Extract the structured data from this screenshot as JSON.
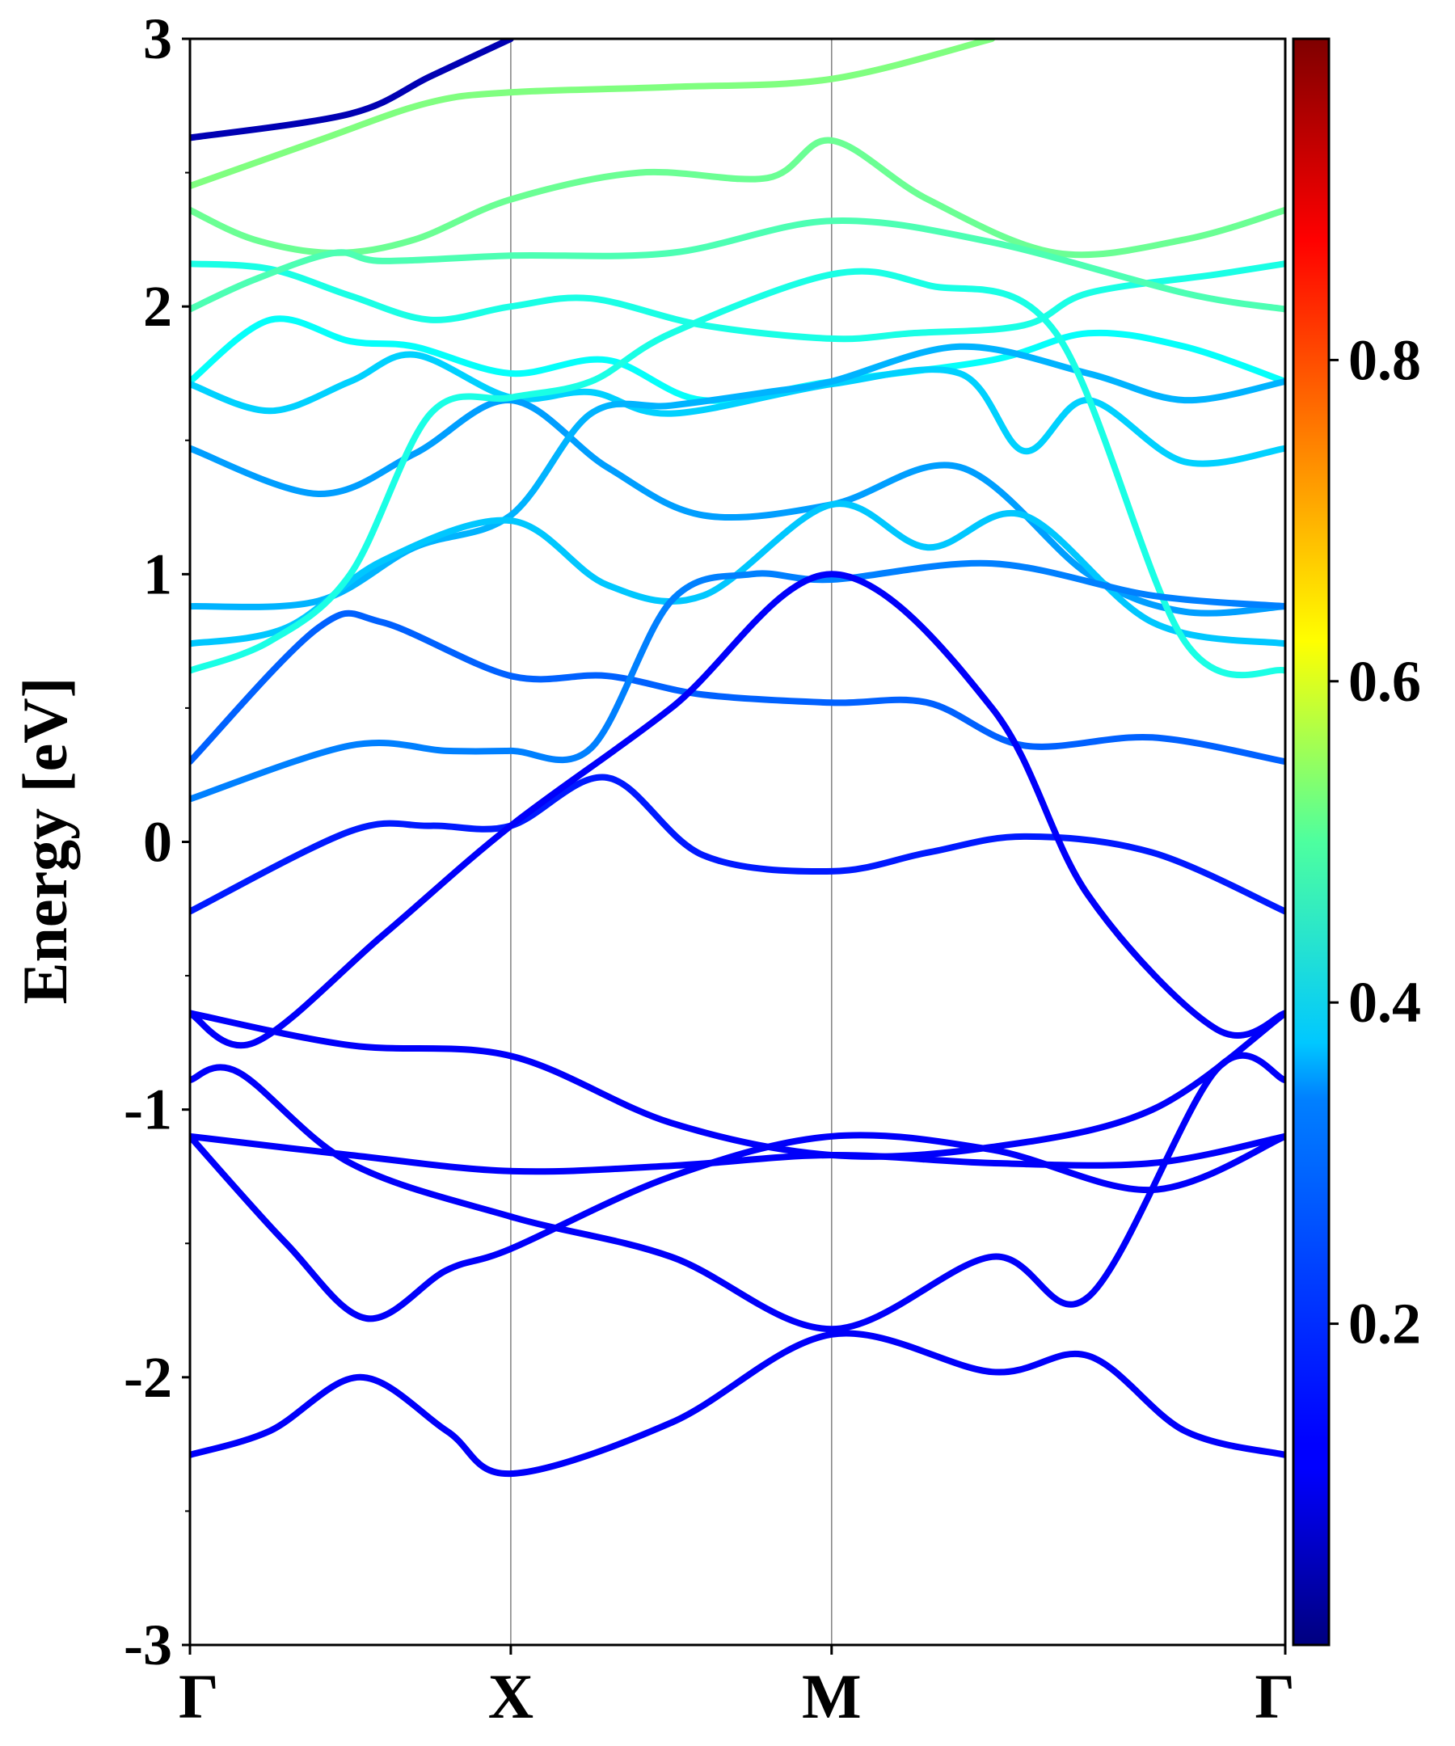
{
  "chart_data": {
    "type": "line",
    "title": "",
    "xlabel": "",
    "ylabel": "Energy [eV]",
    "ylim": [
      -3,
      3
    ],
    "y_ticks": [
      "-3",
      "-2",
      "-1",
      "0",
      "1",
      "2",
      "3"
    ],
    "k_points": [
      "Γ",
      "X",
      "M",
      "Γ"
    ],
    "k_point_positions": [
      0.0,
      1.0,
      2.0,
      3.414
    ],
    "grid": false,
    "vertical_lines_at_k_points": true,
    "colormap": "jet",
    "colorbar": {
      "range": [
        0.0,
        1.0
      ],
      "ticks": [
        "0.2",
        "0.4",
        "0.6",
        "0.8"
      ],
      "position": "right"
    },
    "series": [
      {
        "values": [
          [
            0,
            2.63
          ],
          [
            0.5,
            2.72
          ],
          [
            0.75,
            2.86
          ],
          [
            1,
            3.0
          ]
        ],
        "weight": 0.05
      },
      {
        "values": [
          [
            0,
            2.45
          ],
          [
            0.4,
            2.62
          ],
          [
            0.74,
            2.76
          ],
          [
            1,
            2.8
          ],
          [
            1.5,
            2.82
          ],
          [
            2,
            2.85
          ],
          [
            2.5,
            3.0
          ]
        ],
        "weight": 0.5
      },
      {
        "values": [
          [
            0,
            2.36
          ],
          [
            0.2,
            2.25
          ],
          [
            0.45,
            2.2
          ],
          [
            0.7,
            2.25
          ],
          [
            1,
            2.4
          ],
          [
            1.4,
            2.5
          ],
          [
            1.8,
            2.48
          ],
          [
            2,
            2.62
          ],
          [
            2.3,
            2.4
          ],
          [
            2.7,
            2.2
          ],
          [
            3.1,
            2.25
          ],
          [
            3.414,
            2.36
          ]
        ],
        "weight": 0.48
      },
      {
        "values": [
          [
            0,
            2.16
          ],
          [
            0.25,
            2.14
          ],
          [
            0.5,
            2.04
          ],
          [
            0.75,
            1.95
          ],
          [
            1,
            2.0
          ],
          [
            1.25,
            2.03
          ],
          [
            1.6,
            1.93
          ],
          [
            2,
            1.88
          ],
          [
            2.25,
            1.9
          ],
          [
            2.6,
            1.93
          ],
          [
            2.8,
            2.05
          ],
          [
            3.2,
            2.12
          ],
          [
            3.414,
            2.16
          ]
        ],
        "weight": 0.4
      },
      {
        "values": [
          [
            0,
            1.99
          ],
          [
            0.2,
            2.1
          ],
          [
            0.45,
            2.2
          ],
          [
            0.6,
            2.17
          ],
          [
            1,
            2.19
          ],
          [
            1.5,
            2.2
          ],
          [
            2,
            2.32
          ],
          [
            2.5,
            2.24
          ],
          [
            3.1,
            2.05
          ],
          [
            3.414,
            1.99
          ]
        ],
        "weight": 0.45
      },
      {
        "values": [
          [
            0,
            1.72
          ],
          [
            0.25,
            1.95
          ],
          [
            0.5,
            1.87
          ],
          [
            0.7,
            1.85
          ],
          [
            1,
            1.75
          ],
          [
            1.3,
            1.8
          ],
          [
            1.6,
            1.65
          ],
          [
            2,
            1.72
          ],
          [
            2.5,
            1.8
          ],
          [
            2.8,
            1.9
          ],
          [
            3.1,
            1.85
          ],
          [
            3.414,
            1.72
          ]
        ],
        "weight": 0.38
      },
      {
        "values": [
          [
            0,
            1.71
          ],
          [
            0.25,
            1.61
          ],
          [
            0.5,
            1.72
          ],
          [
            0.7,
            1.82
          ],
          [
            1,
            1.66
          ],
          [
            1.25,
            1.68
          ],
          [
            1.5,
            1.6
          ],
          [
            2,
            1.71
          ],
          [
            2.4,
            1.75
          ],
          [
            2.6,
            1.46
          ],
          [
            2.8,
            1.65
          ],
          [
            3.1,
            1.42
          ],
          [
            3.414,
            1.47
          ]
        ],
        "weight": 0.33
      },
      {
        "values": [
          [
            0,
            1.47
          ],
          [
            0.4,
            1.3
          ],
          [
            0.7,
            1.45
          ],
          [
            1,
            1.65
          ],
          [
            1.3,
            1.4
          ],
          [
            1.6,
            1.22
          ],
          [
            2,
            1.26
          ],
          [
            2.4,
            1.4
          ],
          [
            2.8,
            1.0
          ],
          [
            3.1,
            0.86
          ],
          [
            3.414,
            0.88
          ]
        ],
        "weight": 0.28
      },
      {
        "values": [
          [
            0,
            0.88
          ],
          [
            0.4,
            0.9
          ],
          [
            0.7,
            1.1
          ],
          [
            1,
            1.22
          ],
          [
            1.25,
            1.6
          ],
          [
            1.5,
            1.63
          ],
          [
            1.8,
            1.68
          ],
          [
            2,
            1.72
          ],
          [
            2.4,
            1.85
          ],
          [
            2.8,
            1.75
          ],
          [
            3.1,
            1.65
          ],
          [
            3.414,
            1.72
          ]
        ],
        "weight": 0.3
      },
      {
        "values": [
          [
            0,
            0.74
          ],
          [
            0.3,
            0.8
          ],
          [
            0.6,
            1.05
          ],
          [
            1,
            1.2
          ],
          [
            1.3,
            0.96
          ],
          [
            1.6,
            0.92
          ],
          [
            2,
            1.26
          ],
          [
            2.3,
            1.1
          ],
          [
            2.6,
            1.22
          ],
          [
            3.0,
            0.82
          ],
          [
            3.414,
            0.74
          ]
        ],
        "weight": 0.32
      },
      {
        "values": [
          [
            0,
            0.64
          ],
          [
            0.25,
            0.75
          ],
          [
            0.5,
            1.0
          ],
          [
            0.75,
            1.6
          ],
          [
            1,
            1.66
          ],
          [
            1.25,
            1.72
          ],
          [
            1.5,
            1.9
          ],
          [
            2,
            2.12
          ],
          [
            2.3,
            2.08
          ],
          [
            2.7,
            1.9
          ],
          [
            3.1,
            0.75
          ],
          [
            3.414,
            0.64
          ]
        ],
        "weight": 0.4
      },
      {
        "values": [
          [
            0,
            0.3
          ],
          [
            0.4,
            0.8
          ],
          [
            0.6,
            0.82
          ],
          [
            1,
            0.62
          ],
          [
            1.3,
            0.62
          ],
          [
            1.6,
            0.55
          ],
          [
            2,
            0.52
          ],
          [
            2.3,
            0.52
          ],
          [
            2.6,
            0.36
          ],
          [
            3.0,
            0.39
          ],
          [
            3.414,
            0.3
          ]
        ],
        "weight": 0.22
      },
      {
        "values": [
          [
            0,
            0.16
          ],
          [
            0.5,
            0.36
          ],
          [
            0.8,
            0.34
          ],
          [
            1,
            0.34
          ],
          [
            1.25,
            0.35
          ],
          [
            1.5,
            0.9
          ],
          [
            1.75,
            1.0
          ],
          [
            2,
            0.98
          ],
          [
            2.5,
            1.04
          ],
          [
            3.0,
            0.92
          ],
          [
            3.414,
            0.88
          ]
        ],
        "weight": 0.25
      },
      {
        "values": [
          [
            0,
            -0.26
          ],
          [
            0.5,
            0.04
          ],
          [
            0.75,
            0.06
          ],
          [
            1,
            0.06
          ],
          [
            1.3,
            0.24
          ],
          [
            1.6,
            -0.05
          ],
          [
            2,
            -0.11
          ],
          [
            2.3,
            -0.04
          ],
          [
            2.6,
            0.02
          ],
          [
            3.0,
            -0.04
          ],
          [
            3.414,
            -0.26
          ]
        ],
        "weight": 0.15
      },
      {
        "values": [
          [
            0,
            -0.64
          ],
          [
            0.2,
            -0.75
          ],
          [
            0.6,
            -0.35
          ],
          [
            1,
            0.06
          ],
          [
            1.5,
            0.5
          ],
          [
            2,
            1.0
          ],
          [
            2.5,
            0.5
          ],
          [
            2.8,
            -0.2
          ],
          [
            3.2,
            -0.7
          ],
          [
            3.414,
            -0.64
          ]
        ],
        "weight": 0.12
      },
      {
        "values": [
          [
            0,
            -0.64
          ],
          [
            0.5,
            -0.76
          ],
          [
            1,
            -0.8
          ],
          [
            1.5,
            -1.05
          ],
          [
            2,
            -1.17
          ],
          [
            2.5,
            -1.14
          ],
          [
            3.0,
            -1.0
          ],
          [
            3.414,
            -0.64
          ]
        ],
        "weight": 0.12
      },
      {
        "values": [
          [
            0,
            -0.89
          ],
          [
            0.15,
            -0.86
          ],
          [
            0.5,
            -1.2
          ],
          [
            1,
            -1.4
          ],
          [
            1.5,
            -1.55
          ],
          [
            2,
            -1.82
          ],
          [
            2.5,
            -1.55
          ],
          [
            2.8,
            -1.7
          ],
          [
            3.2,
            -0.85
          ],
          [
            3.414,
            -0.89
          ]
        ],
        "weight": 0.12
      },
      {
        "values": [
          [
            0,
            -1.1
          ],
          [
            0.5,
            -1.17
          ],
          [
            1,
            -1.23
          ],
          [
            1.5,
            -1.21
          ],
          [
            2,
            -1.17
          ],
          [
            2.5,
            -1.2
          ],
          [
            3.0,
            -1.2
          ],
          [
            3.414,
            -1.1
          ]
        ],
        "weight": 0.12
      },
      {
        "values": [
          [
            0,
            -1.1
          ],
          [
            0.3,
            -1.5
          ],
          [
            0.55,
            -1.78
          ],
          [
            0.8,
            -1.6
          ],
          [
            1,
            -1.52
          ],
          [
            1.5,
            -1.25
          ],
          [
            2,
            -1.1
          ],
          [
            2.5,
            -1.15
          ],
          [
            3.0,
            -1.3
          ],
          [
            3.414,
            -1.1
          ]
        ],
        "weight": 0.12
      },
      {
        "values": [
          [
            0,
            -2.29
          ],
          [
            0.25,
            -2.2
          ],
          [
            0.53,
            -2.0
          ],
          [
            0.8,
            -2.2
          ],
          [
            1,
            -2.36
          ],
          [
            1.5,
            -2.17
          ],
          [
            2,
            -1.84
          ],
          [
            2.5,
            -1.98
          ],
          [
            2.8,
            -1.92
          ],
          [
            3.1,
            -2.2
          ],
          [
            3.414,
            -2.29
          ]
        ],
        "weight": 0.12
      }
    ]
  }
}
